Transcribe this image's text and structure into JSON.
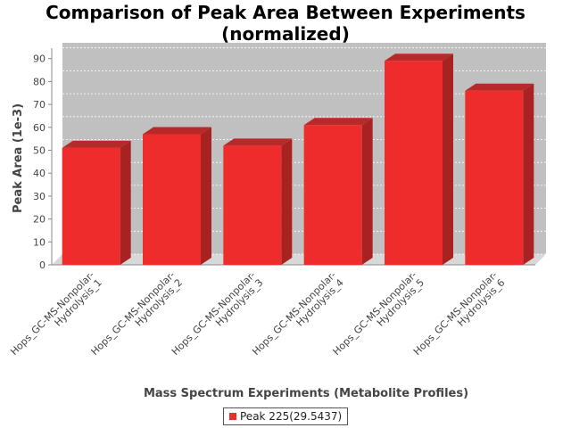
{
  "chart_data": {
    "type": "bar",
    "title_line1": "Comparison of Peak Area Between Experiments",
    "title_line2": "(normalized)",
    "xlabel": "Mass Spectrum Experiments (Metabolite Profiles)",
    "ylabel": "Peak Area (1e-3)",
    "categories": [
      [
        "Hops_GC-MS-Nonpolar-",
        "Hydrolysis_1"
      ],
      [
        "Hops_GC-MS-Nonpolar-",
        "Hydrolysis_2"
      ],
      [
        "Hops_GC-MS-Nonpolar-",
        "Hydrolysis_3"
      ],
      [
        "Hops_GC-MS-Nonpolar-",
        "Hydrolysis_4"
      ],
      [
        "Hops_GC-MS-Nonpolar-",
        "Hydrolysis_5"
      ],
      [
        "Hops_GC-MS-Nonpolar-",
        "Hydrolysis_6"
      ]
    ],
    "series": [
      {
        "name": "Peak 225(29.5437)",
        "values": [
          51,
          57,
          52,
          61,
          89,
          76
        ],
        "color": "#ee2c2c"
      }
    ],
    "ylim": [
      0,
      93
    ],
    "yticks": [
      0,
      10,
      20,
      30,
      40,
      50,
      60,
      70,
      80,
      90
    ],
    "grid": true,
    "legend_position": "bottom"
  }
}
